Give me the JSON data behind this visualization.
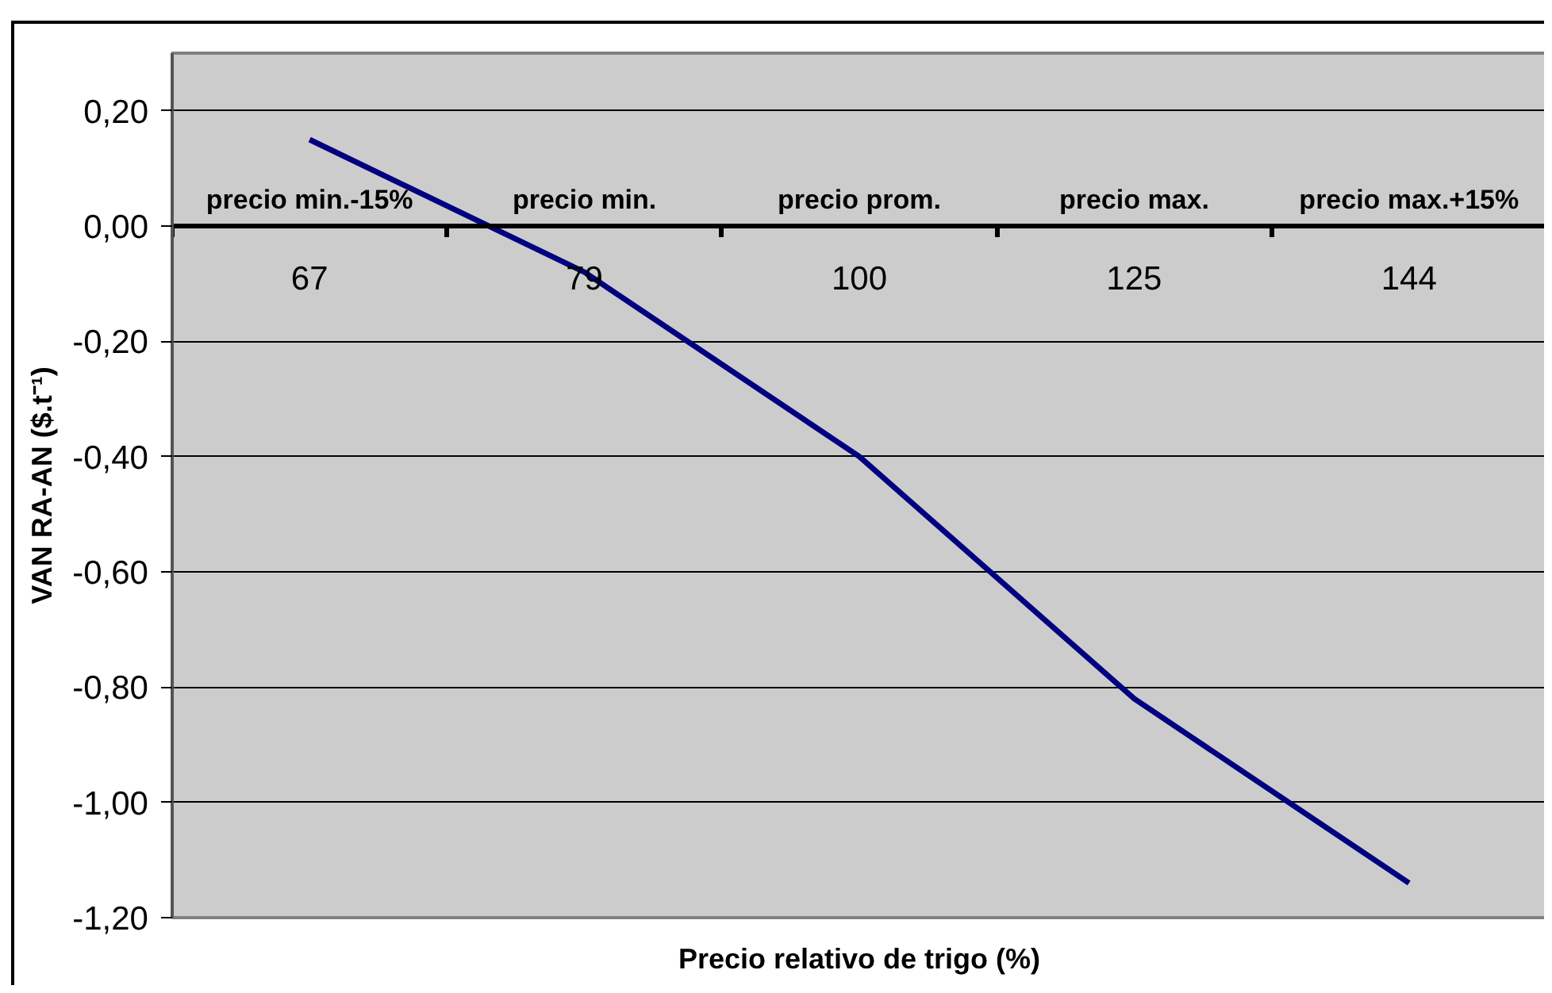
{
  "chart_data": {
    "type": "line",
    "xlabel": "Precio relativo de trigo (%)",
    "ylabel": "VAN RA-AN ($.t⁻¹)",
    "categories": [
      "67",
      "79",
      "100",
      "125",
      "144"
    ],
    "series": [
      {
        "color": "#000080",
        "values": [
          0.15,
          -0.08,
          -0.4,
          -0.82,
          -1.14
        ]
      }
    ],
    "ylim": [
      -1.2,
      0.3
    ],
    "yticks": [
      {
        "value": -1.2,
        "label": "-1,20"
      },
      {
        "value": -1.0,
        "label": "-1,00"
      },
      {
        "value": -0.8,
        "label": "-0,80"
      },
      {
        "value": -0.6,
        "label": "-0,60"
      },
      {
        "value": -0.4,
        "label": "-0,40"
      },
      {
        "value": -0.2,
        "label": "-0,20"
      },
      {
        "value": 0,
        "label": "0,00"
      },
      {
        "value": 0.2,
        "label": "0,20"
      }
    ],
    "grid": "y",
    "line_style": "solid",
    "annotations": [
      "precio min.-15%",
      "precio min.",
      "precio prom.",
      "precio max.",
      "precio max.+15%"
    ]
  }
}
